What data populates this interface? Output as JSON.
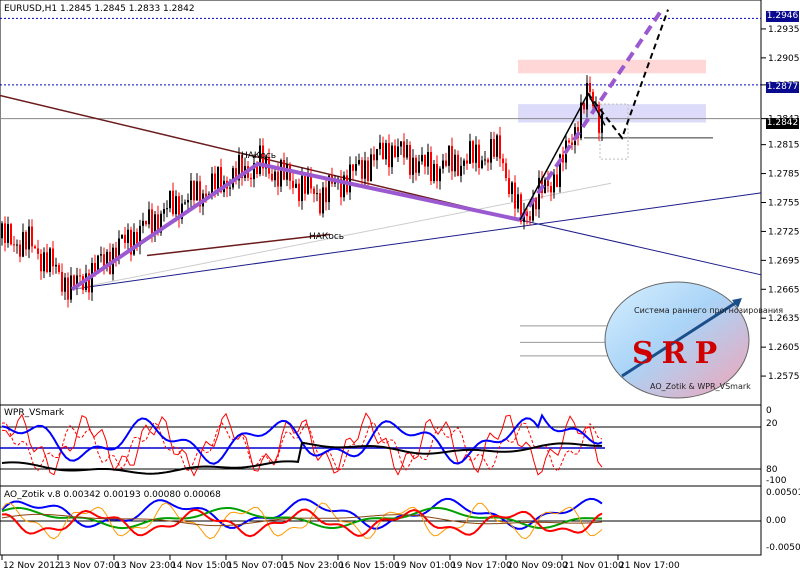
{
  "header": {
    "symbol": "EURUSD,H1",
    "ohlc": "1.2845 1.2845 1.2833 1.2842"
  },
  "panels": {
    "wpr": {
      "name": "WPR_VSmark",
      "scale": [
        "0",
        "20",
        "80",
        "-100"
      ]
    },
    "ao": {
      "name": "AO_Zotik v.8 0.00342 0.00193 0.00080 0.00068",
      "scale": [
        "0.00501",
        "0.00",
        "-0.00503"
      ]
    }
  },
  "annotations": {
    "nakos_upper": "НАКось",
    "nakos_lower": "НАКось"
  },
  "logo": {
    "text": "SRP",
    "caption_top": "Система раннего прогнозирования",
    "caption_bottom": "AO_Zotik & WPR_VSmark"
  },
  "colors": {
    "background": "#ffffff",
    "grid_line": "#000000",
    "bull": "#000000",
    "bear": "#ff0000",
    "fan_purple": "#9b59d0",
    "dash_black": "#000000",
    "trend_blue": "#1c1c8a",
    "trend_dark_red": "#6b1b1b",
    "level_blue": "#0000cc",
    "box_pink": "#ffd7d7",
    "box_blue": "#dcdcfa",
    "wpr_red": "#ff0000",
    "wpr_blue": "#0000ff",
    "wpr_black": "#000000",
    "ao_blue": "#0000ff",
    "ao_green": "#00a000",
    "ao_orange": "#ff9900",
    "ao_red": "#ff0000",
    "ao_brown": "#8b4513"
  },
  "chart_data": {
    "type": "candlestick",
    "title": "EURUSD,H1",
    "ylim": [
      1.2545,
      1.2965
    ],
    "y_ticks": [
      "1.2935",
      "1.2905",
      "1.2877",
      "1.2842",
      "1.2815",
      "1.2785",
      "1.2755",
      "1.2725",
      "1.2695",
      "1.2665",
      "1.2635",
      "1.2605",
      "1.2575"
    ],
    "x_ticks": [
      "12 Nov 2012",
      "13 Nov 07:00",
      "13 Nov 23:00",
      "14 Nov 15:00",
      "15 Nov 07:00",
      "15 Nov 23:00",
      "16 Nov 15:00",
      "19 Nov 01:00",
      "19 Nov 17:00",
      "20 Nov 09:00",
      "21 Nov 01:00",
      "21 Nov 17:00"
    ],
    "levels": [
      {
        "name": "upper-level",
        "price": 1.2946,
        "label": "1.2946"
      },
      {
        "name": "middle-level",
        "price": 1.2877,
        "label": "1.2877"
      }
    ],
    "current_price": {
      "price": 1.2842,
      "label": "1.2842"
    },
    "anchor_prices": [
      1.2718,
      1.2665,
      1.2795,
      1.2762,
      1.2737,
      1.2835,
      1.2868
    ]
  }
}
